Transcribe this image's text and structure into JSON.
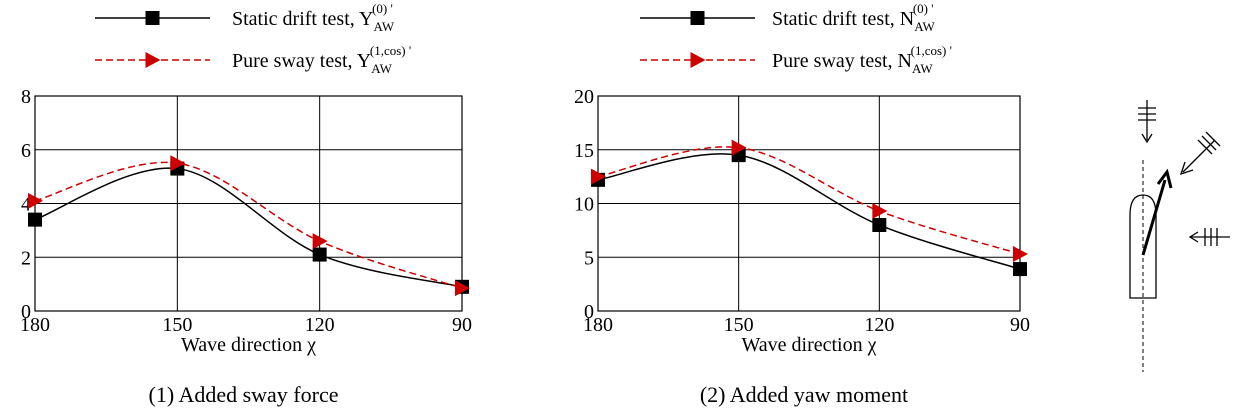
{
  "chart_data": [
    {
      "type": "line",
      "xlabel": "Wave direction χ",
      "caption": "(1) Added sway force",
      "x": [
        180,
        150,
        120,
        90
      ],
      "xlim": [
        180,
        90
      ],
      "xticks": [
        180,
        150,
        120,
        90
      ],
      "ylim": [
        0,
        8
      ],
      "yticks": [
        0,
        2,
        4,
        6,
        8
      ],
      "grid": true,
      "series": [
        {
          "name": "Static drift test, Y",
          "name_sub": "AW",
          "name_sup": "(0) '",
          "color": "#000000",
          "marker": "square",
          "dash": "solid",
          "values": [
            3.4,
            5.3,
            2.1,
            0.9
          ]
        },
        {
          "name": "Pure sway test, Y",
          "name_sub": "AW",
          "name_sup": "(1,cos) '",
          "color": "#cc0000",
          "marker": "triangle-right",
          "dash": "dashed",
          "values": [
            4.1,
            5.5,
            2.6,
            0.85
          ]
        }
      ]
    },
    {
      "type": "line",
      "xlabel": "Wave direction χ",
      "caption": "(2) Added yaw moment",
      "x": [
        180,
        150,
        120,
        90
      ],
      "xlim": [
        180,
        90
      ],
      "xticks": [
        180,
        150,
        120,
        90
      ],
      "ylim": [
        0,
        20
      ],
      "yticks": [
        0,
        5,
        10,
        15,
        20
      ],
      "grid": true,
      "series": [
        {
          "name": "Static drift test, N",
          "name_sub": "AW",
          "name_sup": "(0) '",
          "color": "#000000",
          "marker": "square",
          "dash": "solid",
          "values": [
            12.2,
            14.5,
            8.0,
            3.9
          ]
        },
        {
          "name": "Pure sway test, N",
          "name_sub": "AW",
          "name_sup": "(1,cos) '",
          "color": "#cc0000",
          "marker": "triangle-right",
          "dash": "dashed",
          "values": [
            12.5,
            15.2,
            9.3,
            5.3
          ]
        }
      ]
    }
  ]
}
